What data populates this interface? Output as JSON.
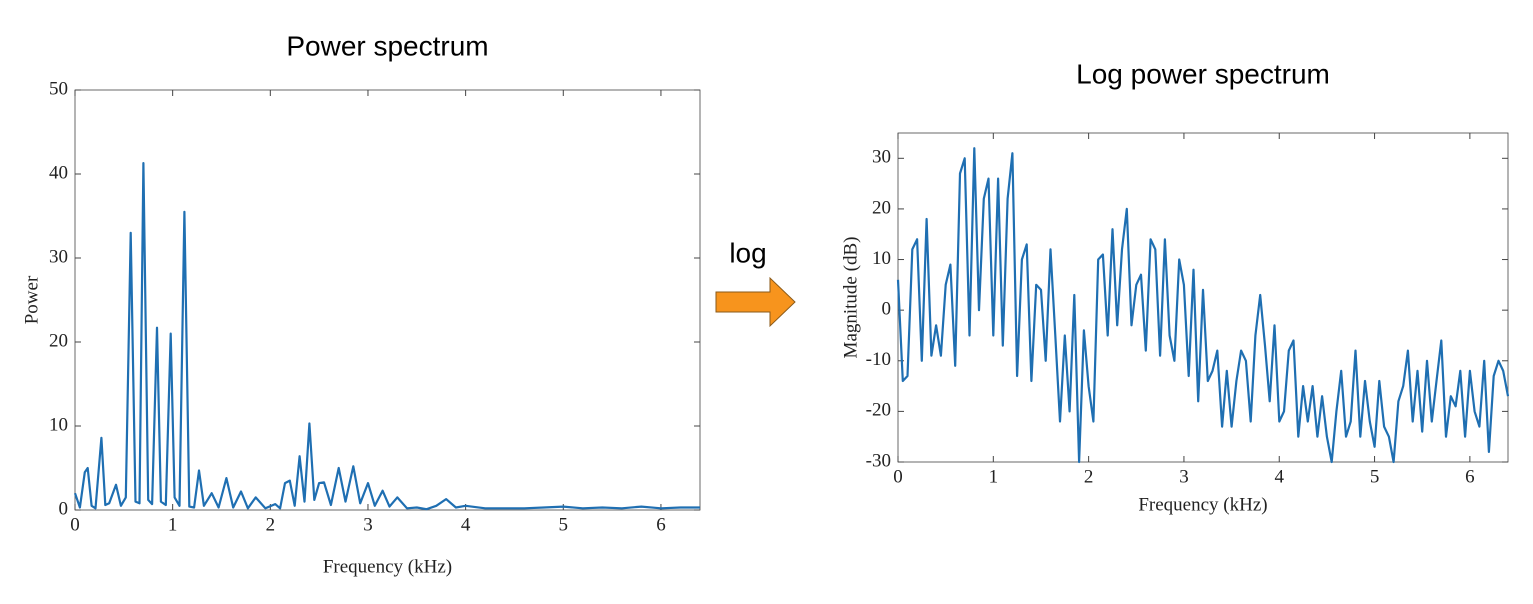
{
  "arrow_label": "log",
  "chart_data": [
    {
      "type": "line",
      "title": "Power spectrum",
      "x_label": "Frequency (kHz)",
      "y_label": "Power",
      "color": "#1f6fb2",
      "xlim": [
        0,
        6.4
      ],
      "xticks": [
        0,
        1,
        2,
        3,
        4,
        5,
        6
      ],
      "ylim": [
        0,
        50
      ],
      "yticks": [
        0,
        10,
        20,
        30,
        40,
        50
      ],
      "grid": false,
      "x": [
        0,
        0.05,
        0.1,
        0.13,
        0.17,
        0.21,
        0.27,
        0.31,
        0.35,
        0.42,
        0.47,
        0.52,
        0.57,
        0.62,
        0.66,
        0.7,
        0.75,
        0.79,
        0.84,
        0.88,
        0.93,
        0.98,
        1.02,
        1.07,
        1.12,
        1.17,
        1.22,
        1.27,
        1.32,
        1.4,
        1.47,
        1.55,
        1.62,
        1.7,
        1.77,
        1.85,
        1.95,
        2.05,
        2.1,
        2.15,
        2.2,
        2.25,
        2.3,
        2.35,
        2.4,
        2.45,
        2.5,
        2.55,
        2.62,
        2.7,
        2.77,
        2.85,
        2.92,
        3.0,
        3.07,
        3.15,
        3.22,
        3.3,
        3.4,
        3.5,
        3.6,
        3.7,
        3.8,
        3.9,
        4.0,
        4.2,
        4.4,
        4.6,
        4.8,
        5.0,
        5.2,
        5.4,
        5.6,
        5.8,
        6.0,
        6.2,
        6.4
      ],
      "values": [
        2,
        0.3,
        4.5,
        5,
        0.5,
        0.2,
        8.6,
        0.6,
        0.8,
        3,
        0.5,
        1.5,
        33,
        1,
        0.8,
        41.3,
        1.2,
        0.7,
        21.7,
        1,
        0.6,
        21,
        1.5,
        0.5,
        35.5,
        0.4,
        0.3,
        4.7,
        0.5,
        2,
        0.3,
        3.8,
        0.3,
        2.2,
        0.2,
        1.5,
        0.2,
        0.7,
        0.2,
        3.2,
        3.5,
        0.5,
        6.4,
        1,
        10.3,
        1.2,
        3.2,
        3.3,
        0.6,
        5,
        1,
        5.2,
        0.8,
        3.2,
        0.5,
        2.3,
        0.4,
        1.5,
        0.2,
        0.3,
        0.1,
        0.5,
        1.3,
        0.3,
        0.5,
        0.2,
        0.2,
        0.2,
        0.3,
        0.4,
        0.2,
        0.3,
        0.2,
        0.4,
        0.2,
        0.3,
        0.3
      ]
    },
    {
      "type": "line",
      "title": "Log power spectrum",
      "x_label": "Frequency (kHz)",
      "y_label": "Magnitude (dB)",
      "color": "#1f6fb2",
      "xlim": [
        0,
        6.4
      ],
      "xticks": [
        0,
        1,
        2,
        3,
        4,
        5,
        6
      ],
      "ylim": [
        -30,
        35
      ],
      "yticks": [
        -30,
        -20,
        -10,
        0,
        10,
        20,
        30
      ],
      "grid": false,
      "x": [
        0,
        0.05,
        0.1,
        0.15,
        0.2,
        0.25,
        0.3,
        0.35,
        0.4,
        0.45,
        0.5,
        0.55,
        0.6,
        0.65,
        0.7,
        0.75,
        0.8,
        0.85,
        0.9,
        0.95,
        1.0,
        1.05,
        1.1,
        1.15,
        1.2,
        1.25,
        1.3,
        1.35,
        1.4,
        1.45,
        1.5,
        1.55,
        1.6,
        1.65,
        1.7,
        1.75,
        1.8,
        1.85,
        1.9,
        1.95,
        2.0,
        2.05,
        2.1,
        2.15,
        2.2,
        2.25,
        2.3,
        2.35,
        2.4,
        2.45,
        2.5,
        2.55,
        2.6,
        2.65,
        2.7,
        2.75,
        2.8,
        2.85,
        2.9,
        2.95,
        3.0,
        3.05,
        3.1,
        3.15,
        3.2,
        3.25,
        3.3,
        3.35,
        3.4,
        3.45,
        3.5,
        3.55,
        3.6,
        3.65,
        3.7,
        3.75,
        3.8,
        3.85,
        3.9,
        3.95,
        4.0,
        4.05,
        4.1,
        4.15,
        4.2,
        4.25,
        4.3,
        4.35,
        4.4,
        4.45,
        4.5,
        4.55,
        4.6,
        4.65,
        4.7,
        4.75,
        4.8,
        4.85,
        4.9,
        4.95,
        5.0,
        5.05,
        5.1,
        5.15,
        5.2,
        5.25,
        5.3,
        5.35,
        5.4,
        5.45,
        5.5,
        5.55,
        5.6,
        5.65,
        5.7,
        5.75,
        5.8,
        5.85,
        5.9,
        5.95,
        6.0,
        6.05,
        6.1,
        6.15,
        6.2,
        6.25,
        6.3,
        6.35,
        6.4
      ],
      "values": [
        6,
        -14,
        -13,
        12,
        14,
        -10,
        18,
        -9,
        -3,
        -9,
        5,
        9,
        -11,
        27,
        30,
        -5,
        32,
        0,
        22,
        26,
        -5,
        26,
        -7,
        22,
        31,
        -13,
        10,
        13,
        -14,
        5,
        4,
        -10,
        12,
        -5,
        -22,
        -5,
        -20,
        3,
        -30,
        -4,
        -15,
        -22,
        10,
        11,
        -5,
        16,
        -3,
        12,
        20,
        -3,
        5,
        7,
        -8,
        14,
        12,
        -9,
        14,
        -5,
        -10,
        10,
        5,
        -13,
        8,
        -18,
        4,
        -14,
        -12,
        -8,
        -23,
        -12,
        -23,
        -14,
        -8,
        -10,
        -22,
        -5,
        3,
        -7,
        -18,
        -3,
        -22,
        -20,
        -8,
        -6,
        -25,
        -15,
        -22,
        -15,
        -25,
        -17,
        -25,
        -30,
        -20,
        -12,
        -25,
        -22,
        -8,
        -25,
        -14,
        -22,
        -27,
        -14,
        -23,
        -25,
        -30,
        -18,
        -15,
        -8,
        -22,
        -12,
        -24,
        -10,
        -22,
        -14,
        -6,
        -25,
        -17,
        -19,
        -12,
        -25,
        -12,
        -20,
        -23,
        -10,
        -28,
        -13,
        -10,
        -12,
        -17
      ]
    }
  ]
}
